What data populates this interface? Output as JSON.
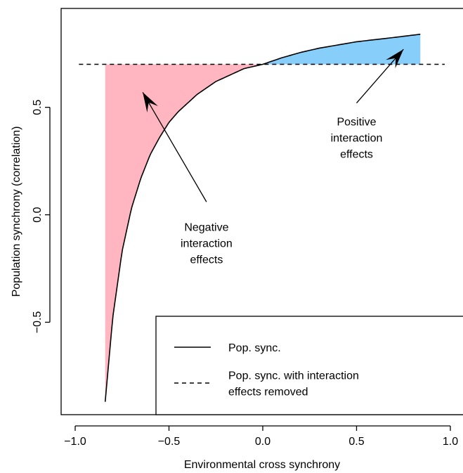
{
  "chart_data": {
    "type": "line",
    "xlabel": "Environmental cross synchrony",
    "ylabel": "Population synchrony (correlation)",
    "xlim": [
      -1.0,
      1.0
    ],
    "ylim": [
      -0.93,
      0.96
    ],
    "x_ticks": [
      {
        "value": -1.0,
        "label": "−1.0"
      },
      {
        "value": -0.5,
        "label": "−0.5"
      },
      {
        "value": 0.0,
        "label": "0.0"
      },
      {
        "value": 0.5,
        "label": "0.5"
      },
      {
        "value": 1.0,
        "label": "1.0"
      }
    ],
    "y_ticks": [
      {
        "value": -0.5,
        "label": "−0.5"
      },
      {
        "value": 0.0,
        "label": "0.0"
      },
      {
        "value": 0.5,
        "label": "0.5"
      }
    ],
    "grid": false,
    "legend_position": "bottom-right",
    "series": [
      {
        "name": "Pop. sync.",
        "style": "solid",
        "color": "#000000",
        "x": [
          -0.84,
          -0.8,
          -0.75,
          -0.7,
          -0.65,
          -0.6,
          -0.55,
          -0.5,
          -0.45,
          -0.4,
          -0.35,
          -0.3,
          -0.25,
          -0.2,
          -0.15,
          -0.1,
          -0.05,
          0.0,
          0.1,
          0.2,
          0.3,
          0.4,
          0.5,
          0.6,
          0.7,
          0.84
        ],
        "y": [
          -0.87,
          -0.48,
          -0.17,
          0.03,
          0.17,
          0.28,
          0.36,
          0.43,
          0.48,
          0.52,
          0.56,
          0.59,
          0.62,
          0.64,
          0.66,
          0.68,
          0.69,
          0.7,
          0.73,
          0.755,
          0.775,
          0.79,
          0.805,
          0.815,
          0.825,
          0.84
        ]
      },
      {
        "name": "Pop. sync. with interaction effects removed",
        "style": "dashed",
        "color": "#000000",
        "x": [
          -1.0,
          1.0
        ],
        "y": [
          0.7,
          0.7
        ]
      }
    ],
    "shaded_regions": [
      {
        "name": "negative",
        "color": "#ffb6c1",
        "x_range": [
          -0.84,
          0.0
        ]
      },
      {
        "name": "positive",
        "color": "#87cefa",
        "x_range": [
          0.0,
          0.84
        ]
      }
    ],
    "annotations": [
      {
        "lines": [
          "Negative",
          "interaction",
          "effects"
        ],
        "text_at": [
          -0.3,
          -0.13
        ],
        "arrow_from": [
          -0.3,
          0.06
        ],
        "arrow_to": [
          -0.64,
          0.57
        ]
      },
      {
        "lines": [
          "Positive",
          "interaction",
          "effects"
        ],
        "text_at": [
          0.5,
          0.36
        ],
        "arrow_from": [
          0.5,
          0.52
        ],
        "arrow_to": [
          0.75,
          0.77
        ]
      }
    ],
    "legend": {
      "entries": [
        {
          "lines": [
            "Pop. sync."
          ],
          "style": "solid"
        },
        {
          "lines": [
            "Pop. sync. with interaction",
            "effects removed"
          ],
          "style": "dashed"
        }
      ]
    }
  }
}
